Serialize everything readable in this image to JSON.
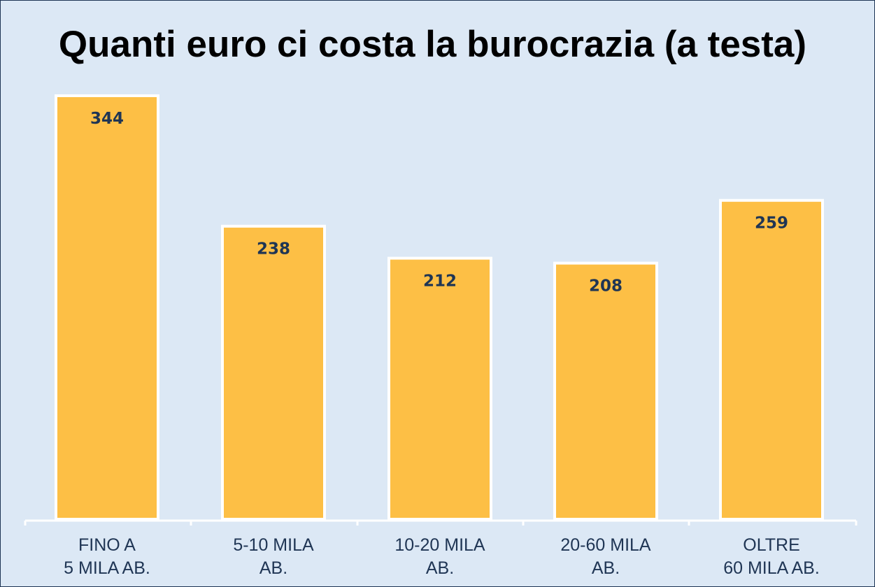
{
  "chart_data": {
    "type": "bar",
    "title": "Quanti euro ci costa la burocrazia (a testa)",
    "categories": [
      [
        "FINO A",
        "5 MILA AB."
      ],
      [
        "5-10 MILA",
        "AB."
      ],
      [
        "10-20 MILA",
        "AB."
      ],
      [
        "20-60 MILA",
        "AB."
      ],
      [
        "OLTRE",
        "60 MILA AB."
      ]
    ],
    "values": [
      344,
      238,
      212,
      208,
      259
    ],
    "ylim": [
      0,
      344
    ],
    "xlabel": "",
    "ylabel": "",
    "grid": false,
    "bar_color": "#fdbf45",
    "bar_border_color": "#ffffff",
    "label_color": "#1f3554",
    "axis_color": "#ffffff",
    "background_color": "#dce8f5"
  }
}
